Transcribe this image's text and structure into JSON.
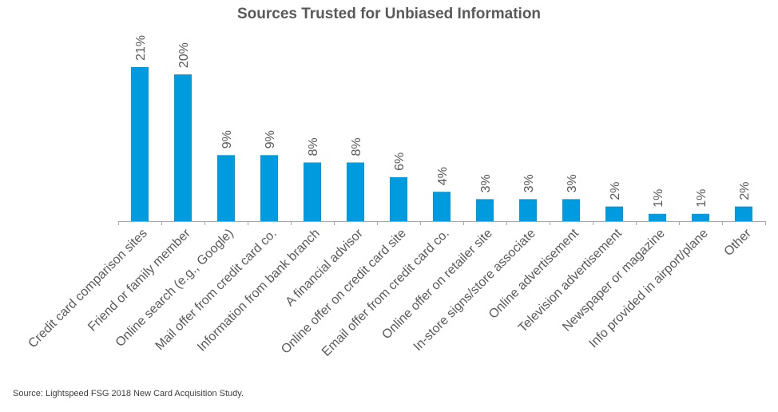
{
  "chart_data": {
    "type": "bar",
    "title": "Sources Trusted for Unbiased Information",
    "categories": [
      "Credit card comparison sites",
      "Friend or family member",
      "Online search (e.g., Google)",
      "Mail offer from credit card co.",
      "Information from bank branch",
      "A financial advisor",
      "Online offer on credit card site",
      "Email offer from credit card co.",
      "Online offer on retailer site",
      "In-store signs/store associate",
      "Online advertisement",
      "Television advertisement",
      "Newspaper or magazine",
      "Info provided in airport/plane",
      "Other"
    ],
    "values": [
      21,
      20,
      9,
      9,
      8,
      8,
      6,
      4,
      3,
      3,
      3,
      2,
      1,
      1,
      2
    ],
    "value_labels": [
      "21%",
      "20%",
      "9%",
      "9%",
      "8%",
      "8%",
      "6%",
      "4%",
      "3%",
      "3%",
      "3%",
      "2%",
      "1%",
      "1%",
      "2%"
    ],
    "xlabel": "",
    "ylabel": "",
    "ylim": [
      0,
      21
    ],
    "grid": false,
    "legend": "none",
    "bar_color": "#009ADE",
    "axis_color": "#A6A6A6",
    "label_color": "#595959"
  },
  "source_note": "Source: Lightspeed FSG 2018 New Card Acquisition Study."
}
